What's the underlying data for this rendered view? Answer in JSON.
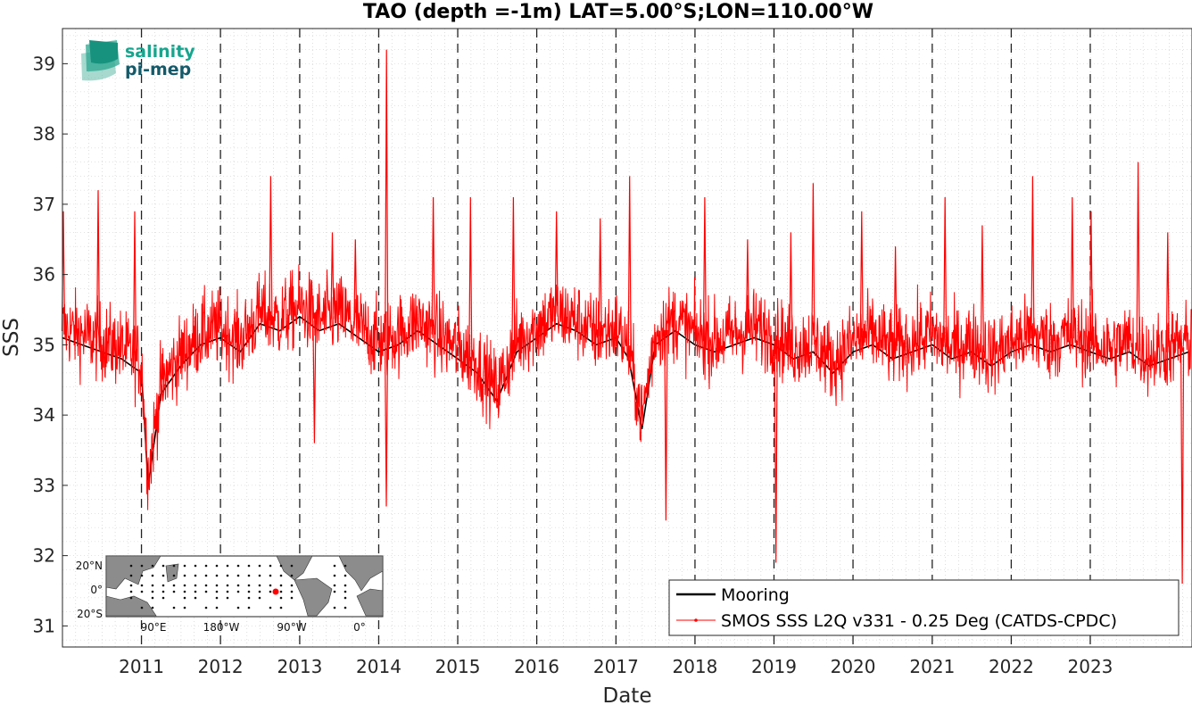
{
  "chart_data": {
    "type": "line",
    "title": "TAO (depth =-1m) LAT=5.00°S;LON=110.00°W",
    "xlabel": "Date",
    "ylabel": "SSS",
    "xlim": [
      "2010-01-01",
      "2024-04-15"
    ],
    "ylim": [
      30.7,
      39.5
    ],
    "y_ticks": [
      31,
      32,
      33,
      34,
      35,
      36,
      37,
      38,
      39
    ],
    "x_ticks": [
      "2011",
      "2012",
      "2013",
      "2014",
      "2015",
      "2016",
      "2017",
      "2018",
      "2019",
      "2020",
      "2021",
      "2022",
      "2023"
    ],
    "year_boundaries": [
      "2011-01-01",
      "2012-01-01",
      "2013-01-01",
      "2014-01-01",
      "2015-01-01",
      "2016-01-01",
      "2017-01-01",
      "2018-01-01",
      "2019-01-01",
      "2020-01-01",
      "2021-01-01",
      "2022-01-01",
      "2023-01-01"
    ],
    "grid": "dotted minor",
    "legend_position": "bottom-right",
    "series": [
      {
        "name": "Mooring",
        "color": "#000000",
        "marker": "none",
        "x": [
          "2010-01-01",
          "2010-04-01",
          "2010-07-01",
          "2010-10-01",
          "2011-01-01",
          "2011-02-01",
          "2011-04-01",
          "2011-07-01",
          "2011-10-01",
          "2012-01-01",
          "2012-04-01",
          "2012-07-01",
          "2012-10-01",
          "2013-01-01",
          "2013-04-01",
          "2013-07-01",
          "2013-10-01",
          "2014-01-01",
          "2014-04-01",
          "2014-07-01",
          "2014-10-01",
          "2015-01-01",
          "2015-04-01",
          "2015-07-01",
          "2015-10-01",
          "2016-01-01",
          "2016-04-01",
          "2016-07-01",
          "2016-10-01",
          "2017-01-01",
          "2017-03-01",
          "2017-05-01",
          "2017-07-01",
          "2017-10-01",
          "2018-01-01",
          "2018-04-01",
          "2018-07-01",
          "2018-10-01",
          "2019-01-01",
          "2019-04-01",
          "2019-07-01",
          "2019-10-01",
          "2020-01-01",
          "2020-04-01",
          "2020-07-01",
          "2020-10-01",
          "2021-01-01",
          "2021-04-01",
          "2021-07-01",
          "2021-10-01",
          "2022-01-01",
          "2022-04-01",
          "2022-07-01",
          "2022-10-01",
          "2023-01-01",
          "2023-04-01",
          "2023-07-01",
          "2023-10-01",
          "2024-01-01",
          "2024-04-01"
        ],
        "y": [
          35.1,
          35.0,
          34.9,
          34.8,
          34.6,
          33.0,
          34.3,
          34.7,
          35.0,
          35.1,
          34.9,
          35.3,
          35.2,
          35.4,
          35.2,
          35.3,
          35.1,
          34.9,
          35.0,
          35.2,
          35.0,
          34.8,
          34.6,
          34.2,
          34.9,
          35.1,
          35.3,
          35.2,
          35.0,
          35.1,
          34.8,
          33.8,
          35.0,
          35.2,
          35.0,
          34.9,
          35.0,
          35.1,
          35.0,
          34.8,
          34.9,
          34.6,
          34.9,
          35.0,
          34.8,
          34.9,
          35.0,
          34.8,
          34.9,
          34.7,
          34.9,
          35.0,
          34.9,
          35.0,
          34.9,
          34.8,
          34.9,
          34.7,
          34.8,
          34.9
        ]
      },
      {
        "name": "SMOS SSS L2Q v331 - 0.25 Deg (CATDS-CPDC)",
        "color": "#ff0000",
        "marker": "dot",
        "y_typical_range": [
          34.0,
          36.2
        ],
        "x_peaks": [
          "2010-01-05",
          "2010-06-15",
          "2010-12-01",
          "2011-04-10",
          "2012-08-20",
          "2013-03-10",
          "2013-06-01",
          "2013-09-15",
          "2014-02-05",
          "2014-02-06",
          "2014-09-10",
          "2015-03-01",
          "2015-09-15",
          "2016-04-01",
          "2016-10-20",
          "2017-03-05",
          "2017-08-20",
          "2018-02-15",
          "2018-09-01",
          "2019-01-10",
          "2019-03-20",
          "2019-07-01",
          "2020-02-10",
          "2020-07-15",
          "2021-03-01",
          "2021-08-20",
          "2022-04-10",
          "2022-10-10",
          "2023-01-05",
          "2023-08-10",
          "2023-12-25",
          "2024-03-01"
        ],
        "y_peaks": [
          36.9,
          37.2,
          36.9,
          34.2,
          37.4,
          33.6,
          36.6,
          36.5,
          32.7,
          39.2,
          37.1,
          37.1,
          37.1,
          36.9,
          36.8,
          37.4,
          32.5,
          37.1,
          36.5,
          31.9,
          36.6,
          37.3,
          36.9,
          36.4,
          37.1,
          36.7,
          37.4,
          37.1,
          36.9,
          37.6,
          36.6,
          31.6
        ]
      }
    ],
    "inset_map": {
      "lat_labels": [
        "20°N",
        "0°",
        "20°S"
      ],
      "lon_labels": [
        "90°E",
        "180°W",
        "90°W",
        "0°"
      ],
      "marker": "LAT=5.00°S;LON=110.00°W",
      "marker_color": "#ff0000"
    }
  },
  "logo": {
    "line1": "salinity",
    "line2": "pi-mep"
  }
}
